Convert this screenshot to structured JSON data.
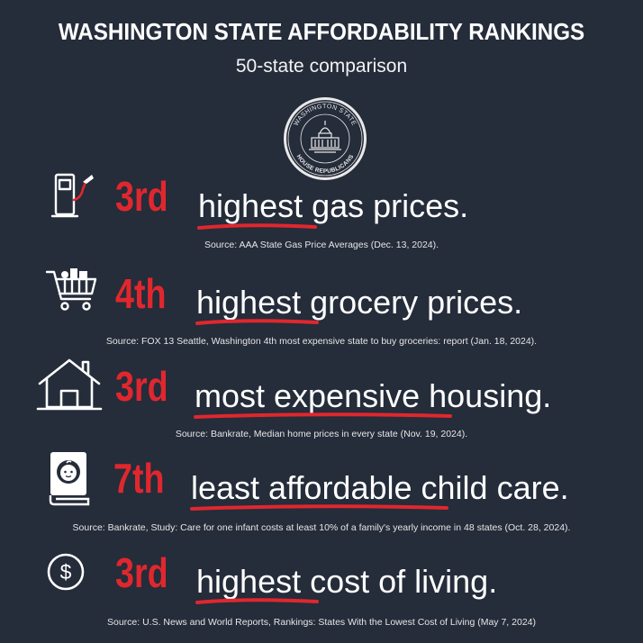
{
  "header": {
    "title": "WASHINGTON STATE AFFORDABILITY RANKINGS",
    "subtitle": "50-state comparison"
  },
  "seal": {
    "top_text": "WASHINGTON STATE",
    "bottom_text": "HOUSE REPUBLICANS"
  },
  "accent_color": "#e0272e",
  "background_color": "#252c3a",
  "rankings": [
    {
      "icon": "gas-pump-icon",
      "rank": "3rd",
      "emphasis": "highest",
      "rest": "gas prices.",
      "source": "Source: AAA State Gas Price Averages (Dec. 13, 2024)."
    },
    {
      "icon": "shopping-cart-icon",
      "rank": "4th",
      "emphasis": "highest",
      "rest": "grocery prices.",
      "source": "Source: FOX 13 Seattle, Washington 4th most expensive state to buy groceries: report (Jan. 18, 2024)."
    },
    {
      "icon": "house-icon",
      "rank": "3rd",
      "emphasis": "most expensive",
      "rest": "housing.",
      "source": "Source: Bankrate, Median home prices in every state (Nov. 19, 2024)."
    },
    {
      "icon": "baby-book-icon",
      "rank": "7th",
      "emphasis": "least affordable",
      "rest": "child care.",
      "source": "Source: Bankrate, Study: Care for one infant costs at least 10% of a family's yearly income in 48 states (Oct. 28, 2024)."
    },
    {
      "icon": "dollar-coin-icon",
      "rank": "3rd",
      "emphasis": "highest",
      "rest": "cost of living.",
      "source": "Source: U.S. News and World Reports, Rankings: States With the Lowest Cost of Living (May 7, 2024)"
    }
  ]
}
